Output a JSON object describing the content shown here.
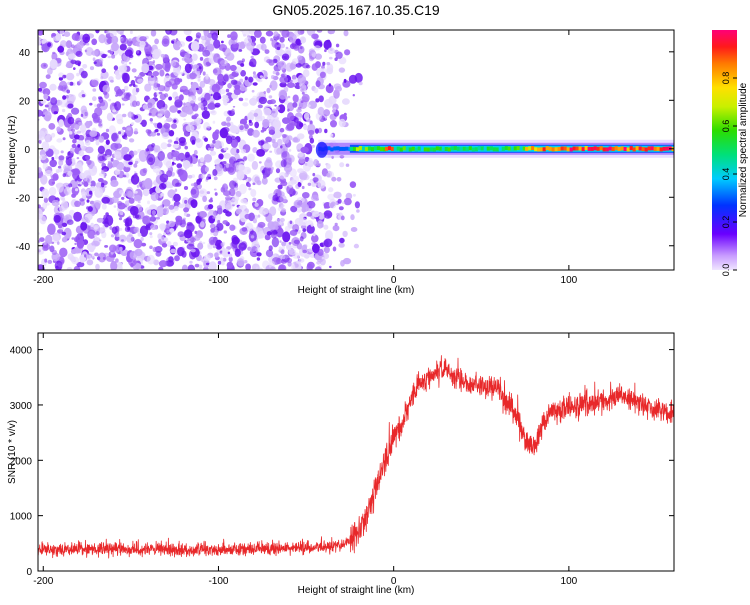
{
  "title": "GN05.2025.167.10.35.C19",
  "colors": {
    "signal": "#e8282a",
    "noise": "#7a2cff",
    "axis": "#000000"
  },
  "chart_data": [
    {
      "id": "spectrogram",
      "type": "heatmap",
      "xlabel": "Height of straight line (km)",
      "ylabel": "Frequency (Hz)",
      "xlim": [
        -203,
        160
      ],
      "ylim": [
        -50,
        49
      ],
      "xticks": [
        -200,
        -100,
        0,
        100
      ],
      "xtick_labels": [
        "-200",
        "-100",
        "0",
        "100"
      ],
      "yticks": [
        -40,
        -20,
        0,
        20,
        40
      ],
      "ytick_labels": [
        "-40",
        "-20",
        "0",
        "20",
        "40"
      ],
      "grid": false,
      "noise_region_x": [
        -203,
        -25
      ],
      "trace_x": [
        -43,
        160
      ],
      "trace_y": 0,
      "trace_segments": [
        {
          "x0": -43,
          "x1": -25,
          "amp": 0.25
        },
        {
          "x0": -25,
          "x1": -5,
          "amp": 0.55
        },
        {
          "x0": -5,
          "x1": 0,
          "amp": 0.85
        },
        {
          "x0": 0,
          "x1": 75,
          "amp": 0.5
        },
        {
          "x0": 75,
          "x1": 85,
          "amp": 0.75
        },
        {
          "x0": 85,
          "x1": 160,
          "amp": 0.9
        }
      ],
      "colorbar": {
        "label": "Normalized spectral amplitude",
        "range": [
          0,
          1
        ],
        "ticks": [
          0.0,
          0.2,
          0.4,
          0.6,
          0.8
        ],
        "tick_labels": [
          "0.0",
          "0.2",
          "0.4",
          "0.6",
          "0.8"
        ]
      }
    },
    {
      "id": "snr",
      "type": "line",
      "xlabel": "Height of straight line (km)",
      "ylabel": "SNR (10 * v/v)",
      "xlim": [
        -203,
        160
      ],
      "ylim": [
        0,
        4300
      ],
      "xticks": [
        -200,
        -100,
        0,
        100
      ],
      "xtick_labels": [
        "-200",
        "-100",
        "0",
        "100"
      ],
      "yticks": [
        0,
        1000,
        2000,
        3000,
        4000
      ],
      "ytick_labels": [
        "0",
        "1000",
        "2000",
        "3000",
        "4000"
      ],
      "grid": false,
      "series": [
        {
          "x": [
            -203,
            -180,
            -150,
            -120,
            -100,
            -80,
            -60,
            -45,
            -35,
            -28,
            -22,
            -15,
            -10,
            -5,
            0,
            5,
            10,
            15,
            20,
            25,
            30,
            40,
            50,
            60,
            65,
            70,
            75,
            80,
            85,
            90,
            100,
            110,
            120,
            130,
            140,
            150,
            160
          ],
          "y": [
            380,
            400,
            390,
            380,
            390,
            400,
            410,
            420,
            450,
            480,
            650,
            1000,
            1500,
            2000,
            2400,
            2700,
            3100,
            3400,
            3500,
            3600,
            3650,
            3400,
            3350,
            3300,
            3050,
            2800,
            2400,
            2200,
            2650,
            2900,
            2950,
            3000,
            3100,
            3150,
            3050,
            2900,
            2850
          ]
        }
      ]
    }
  ]
}
